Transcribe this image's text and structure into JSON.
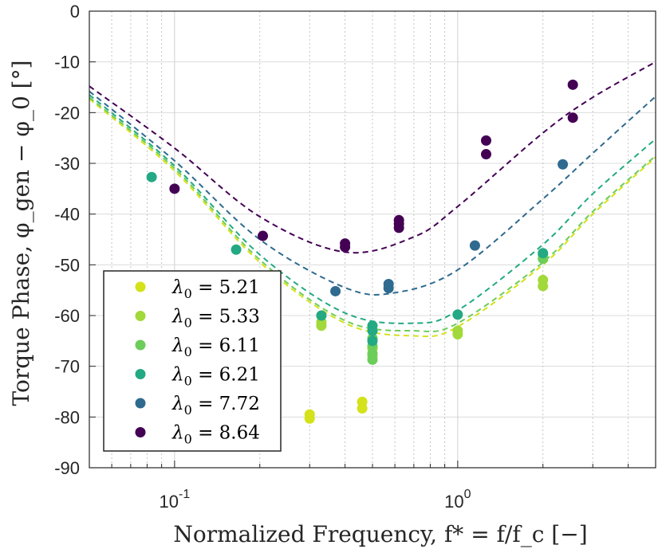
{
  "chart_data": {
    "type": "scatter",
    "xlabel": "Normalized Frequency, f* = f/f_c [−]",
    "ylabel": "Torque Phase, φ_gen − φ_0 [°]",
    "xscale": "log",
    "xlim": [
      0.05,
      5
    ],
    "ylim": [
      -90,
      0
    ],
    "xticks": [
      {
        "value": 0.1,
        "base": "10",
        "exp": "-1"
      },
      {
        "value": 1,
        "base": "10",
        "exp": "0"
      }
    ],
    "yticks": [
      {
        "value": 0,
        "label": "0"
      },
      {
        "value": -10,
        "label": "-10"
      },
      {
        "value": -20,
        "label": "-20"
      },
      {
        "value": -30,
        "label": "-30"
      },
      {
        "value": -40,
        "label": "-40"
      },
      {
        "value": -50,
        "label": "-50"
      },
      {
        "value": -60,
        "label": "-60"
      },
      {
        "value": -70,
        "label": "-70"
      },
      {
        "value": -80,
        "label": "-80"
      },
      {
        "value": -90,
        "label": "-90"
      }
    ],
    "grid": true,
    "legend_position": "bottom-left",
    "series": [
      {
        "name": "λ0 = 5.21",
        "value": "5.21",
        "color": "#d4e21a",
        "points": [
          [
            0.3,
            -79.5
          ],
          [
            0.3,
            -80.3
          ],
          [
            0.46,
            -77
          ],
          [
            0.46,
            -78.3
          ]
        ],
        "fit": [
          [
            0.05,
            -17.3
          ],
          [
            0.1,
            -31.5
          ],
          [
            0.2,
            -49.5
          ],
          [
            0.4,
            -61.5
          ],
          [
            0.7,
            -64
          ],
          [
            1,
            -62.2
          ],
          [
            2,
            -50
          ],
          [
            3,
            -40
          ],
          [
            5,
            -28.8
          ]
        ]
      },
      {
        "name": "λ0 = 5.33",
        "value": "5.33",
        "color": "#a2d93a",
        "points": [
          [
            0.33,
            -61.3
          ],
          [
            0.33,
            -62
          ],
          [
            0.5,
            -66.5
          ],
          [
            0.5,
            -68
          ],
          [
            1,
            -63
          ],
          [
            1,
            -63.7
          ],
          [
            2,
            -53
          ],
          [
            2,
            -54.2
          ]
        ],
        "fit": []
      },
      {
        "name": "λ0 = 6.11",
        "value": "6.11",
        "color": "#6ccd5a",
        "points": [
          [
            0.5,
            -64.5
          ],
          [
            0.5,
            -66
          ],
          [
            0.5,
            -67.5
          ],
          [
            0.5,
            -68.7
          ],
          [
            2,
            -48
          ],
          [
            2,
            -48.8
          ]
        ],
        "fit": [
          [
            0.05,
            -17
          ],
          [
            0.1,
            -31
          ],
          [
            0.2,
            -49
          ],
          [
            0.4,
            -61
          ],
          [
            0.7,
            -63
          ],
          [
            1,
            -61.5
          ],
          [
            2,
            -49.5
          ],
          [
            3,
            -39.5
          ],
          [
            5,
            -28.5
          ]
        ]
      },
      {
        "name": "λ0 = 6.21",
        "value": "6.21",
        "color": "#23a983",
        "points": [
          [
            0.083,
            -32.7
          ],
          [
            0.165,
            -47
          ],
          [
            0.33,
            -60
          ],
          [
            0.5,
            -62
          ],
          [
            0.5,
            -63
          ],
          [
            0.5,
            -65
          ],
          [
            1,
            -59.8
          ],
          [
            2,
            -47.7
          ]
        ],
        "fit": [
          [
            0.05,
            -16.5
          ],
          [
            0.1,
            -30.5
          ],
          [
            0.2,
            -48
          ],
          [
            0.4,
            -59.5
          ],
          [
            0.7,
            -61.5
          ],
          [
            1,
            -59
          ],
          [
            2,
            -46
          ],
          [
            3,
            -36
          ],
          [
            5,
            -25.2
          ]
        ]
      },
      {
        "name": "λ0 = 7.72",
        "value": "7.72",
        "color": "#2f6a8f",
        "points": [
          [
            0.37,
            -55.2
          ],
          [
            0.57,
            -53.8
          ],
          [
            0.57,
            -54.6
          ],
          [
            1.15,
            -46.2
          ],
          [
            2.35,
            -30.2
          ]
        ],
        "fit": [
          [
            0.05,
            -15.8
          ],
          [
            0.1,
            -29.5
          ],
          [
            0.2,
            -45
          ],
          [
            0.4,
            -54.5
          ],
          [
            0.6,
            -55.5
          ],
          [
            1,
            -51
          ],
          [
            2,
            -37
          ],
          [
            3,
            -28
          ],
          [
            5,
            -16.8
          ]
        ]
      },
      {
        "name": "λ0 = 8.64",
        "value": "8.64",
        "color": "#440154",
        "points": [
          [
            0.1,
            -35
          ],
          [
            0.205,
            -44.3
          ],
          [
            0.4,
            -45.8
          ],
          [
            0.4,
            -46.5
          ],
          [
            0.62,
            -41.2
          ],
          [
            0.62,
            -41.9
          ],
          [
            0.62,
            -42.7
          ],
          [
            1.26,
            -25.5
          ],
          [
            1.26,
            -28.2
          ],
          [
            2.55,
            -14.5
          ],
          [
            2.55,
            -21
          ]
        ],
        "fit": [
          [
            0.05,
            -14.8
          ],
          [
            0.1,
            -27
          ],
          [
            0.2,
            -40.5
          ],
          [
            0.4,
            -47.5
          ],
          [
            0.7,
            -44.5
          ],
          [
            1,
            -38.5
          ],
          [
            2,
            -24
          ],
          [
            3,
            -17
          ],
          [
            5,
            -10
          ]
        ]
      }
    ]
  }
}
